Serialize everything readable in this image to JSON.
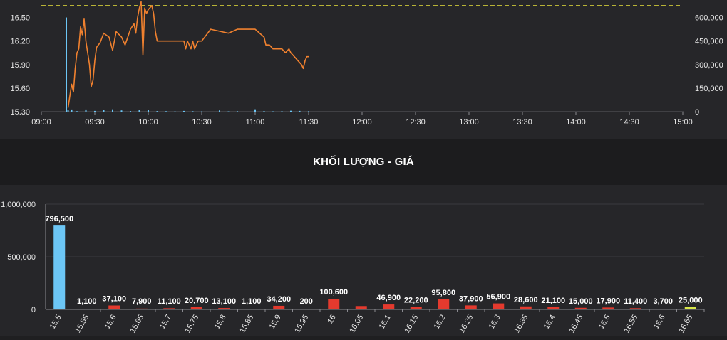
{
  "chart_data": [
    {
      "type": "line",
      "name": "intraday",
      "x_ticks": [
        "09:00",
        "09:30",
        "10:00",
        "10:30",
        "11:00",
        "11:30",
        "12:00",
        "12:30",
        "13:00",
        "13:30",
        "14:00",
        "14:30",
        "15:00"
      ],
      "y_ticks_left": [
        "15.30",
        "15.60",
        "15.90",
        "16.20",
        "16.50"
      ],
      "y_ticks_right": [
        "0",
        "150,000",
        "300,000",
        "450,000",
        "600,000"
      ],
      "ylim_left": [
        15.3,
        16.65
      ],
      "ylim_right": [
        0,
        675000
      ],
      "reference_line": 16.65,
      "price_series": {
        "x": [
          "09:15",
          "09:16",
          "09:17",
          "09:18",
          "09:19",
          "09:20",
          "09:21",
          "09:22",
          "09:23",
          "09:24",
          "09:25",
          "09:26",
          "09:27",
          "09:28",
          "09:29",
          "09:30",
          "09:31",
          "09:33",
          "09:35",
          "09:38",
          "09:40",
          "09:42",
          "09:45",
          "09:47",
          "09:50",
          "09:52",
          "09:53",
          "09:54",
          "09:55",
          "09:56",
          "09:57",
          "09:58",
          "09:59",
          "10:00",
          "10:02",
          "10:03",
          "10:04",
          "10:05",
          "10:06",
          "10:08",
          "10:10",
          "10:15",
          "10:20",
          "10:21",
          "10:22",
          "10:24",
          "10:25",
          "10:26",
          "10:28",
          "10:30",
          "10:35",
          "10:45",
          "10:50",
          "11:00",
          "11:05",
          "11:06",
          "11:08",
          "11:10",
          "11:15",
          "11:17",
          "11:19",
          "11:20",
          "11:22",
          "11:24",
          "11:26",
          "11:27",
          "11:28",
          "11:29",
          "11:30"
        ],
        "y": [
          15.35,
          15.5,
          15.65,
          15.55,
          15.85,
          16.05,
          16.1,
          16.38,
          16.28,
          16.48,
          16.2,
          16.05,
          15.9,
          15.62,
          15.7,
          15.95,
          16.12,
          16.18,
          16.3,
          16.25,
          16.08,
          16.32,
          16.25,
          16.15,
          16.35,
          16.42,
          16.3,
          16.5,
          16.62,
          16.7,
          16.02,
          16.62,
          16.55,
          16.6,
          16.65,
          16.55,
          16.32,
          16.2,
          16.2,
          16.2,
          16.2,
          16.2,
          16.2,
          16.1,
          16.2,
          16.1,
          16.2,
          16.1,
          16.2,
          16.2,
          16.35,
          16.3,
          16.35,
          16.35,
          16.25,
          16.15,
          16.15,
          16.1,
          16.1,
          16.05,
          16.1,
          16.05,
          16.0,
          15.95,
          15.9,
          15.85,
          15.95,
          16.0,
          16.0
        ]
      },
      "volume_series": {
        "x": [
          "09:14",
          "09:15",
          "09:17",
          "09:20",
          "09:25",
          "09:30",
          "09:35",
          "09:40",
          "09:45",
          "09:50",
          "09:55",
          "10:00",
          "10:05",
          "10:10",
          "10:15",
          "10:20",
          "10:25",
          "10:30",
          "10:40",
          "10:45",
          "10:50",
          "11:00",
          "11:05",
          "11:10",
          "11:15",
          "11:20",
          "11:25",
          "11:30"
        ],
        "values": [
          600000,
          12000,
          14000,
          3000,
          14000,
          5000,
          10000,
          15000,
          8000,
          4000,
          9000,
          10000,
          4000,
          3000,
          2000,
          5000,
          3000,
          2000,
          8000,
          2000,
          3000,
          15000,
          4000,
          2000,
          3000,
          6000,
          5000,
          3000
        ]
      }
    },
    {
      "type": "bar",
      "name": "volume-by-price",
      "title": "KHỐI LƯỢNG - GIÁ",
      "categories": [
        "15.5",
        "15.55",
        "15.6",
        "15.65",
        "15.7",
        "15.75",
        "15.8",
        "15.85",
        "15.9",
        "15.95",
        "16",
        "16.05",
        "16.1",
        "16.15",
        "16.2",
        "16.25",
        "16.3",
        "16.35",
        "16.4",
        "16.45",
        "16.5",
        "16.55",
        "16.6",
        "16.65"
      ],
      "values": [
        796500,
        1100,
        37100,
        7900,
        11100,
        20700,
        13100,
        1100,
        34200,
        200,
        100600,
        32000,
        46900,
        22200,
        95800,
        37900,
        56900,
        28600,
        21100,
        15000,
        17900,
        11400,
        3700,
        25000
      ],
      "labels": [
        "796,500",
        "1,100",
        "37,100",
        "7,900",
        "11,100",
        "20,700",
        "13,100",
        "1,100",
        "34,200",
        "200",
        "100,600",
        "",
        "46,900",
        "22,200",
        "95,800",
        "37,900",
        "56,900",
        "28,600",
        "21,100",
        "15,000",
        "17,900",
        "11,400",
        "3,700",
        "25,000"
      ],
      "bar_colors": [
        "#6cc6f5",
        "#e43a2e",
        "#e43a2e",
        "#e43a2e",
        "#e43a2e",
        "#e43a2e",
        "#e43a2e",
        "#e43a2e",
        "#e43a2e",
        "#e43a2e",
        "#e43a2e",
        "#e43a2e",
        "#e43a2e",
        "#e43a2e",
        "#e43a2e",
        "#e43a2e",
        "#e43a2e",
        "#e43a2e",
        "#e43a2e",
        "#e43a2e",
        "#e43a2e",
        "#e43a2e",
        "#e43a2e",
        "#d9e84a"
      ],
      "y_ticks": [
        "0",
        "500,000",
        "1,000,000"
      ],
      "ylim": [
        0,
        1000000
      ]
    }
  ],
  "colors": {
    "price_line": "#f0812f",
    "volume": "#6cc6f5",
    "reference": "#e8e23a",
    "up": "#e43a2e",
    "grid": "#3a3a3e"
  }
}
